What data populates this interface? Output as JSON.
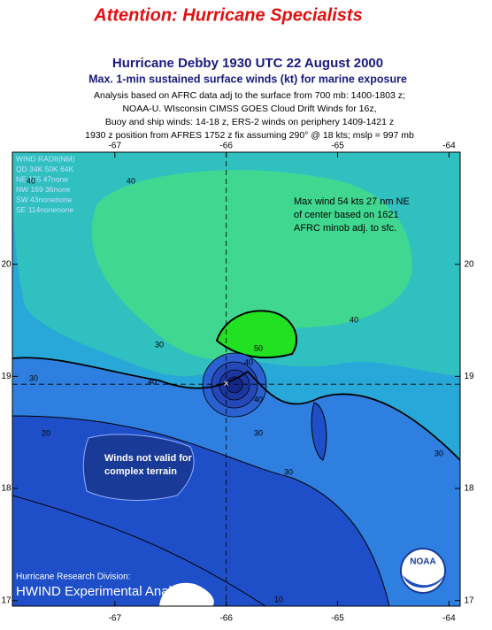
{
  "header": {
    "title": "Attention:  Hurricane Specialists"
  },
  "map": {
    "type": "contour",
    "title": "Hurricane Debby 1930 UTC 22 August 2000",
    "subtitle": "Max. 1-min sustained surface winds (kt) for marine exposure",
    "notes": [
      "Analysis based on AFRC data adj to the surface from 700 mb:  1400-1803 z;",
      "NOAA-U. WIsconsin CIMSS GOES Cloud Drift Winds for 16z,",
      "Buoy and ship winds: 14-18 z,  ERS-2 winds on periphery 1409-1421 z",
      "1930 z position from AFRES 1752 z fix assuming 290° @ 18 kts; mslp = 997 mb"
    ],
    "xlim": [
      -67.92,
      -63.9
    ],
    "ylim": [
      16.95,
      21.0
    ],
    "xticks": [
      -67,
      -66,
      -65,
      -64
    ],
    "yticks": [
      17,
      18,
      19,
      20
    ],
    "center": {
      "lon": -66.0,
      "lat": 18.93
    },
    "wind_radii": [
      "WIND RADII(NM)",
      "QD  34K  50K  64K",
      "NE  155   47none",
      "NW  169   36none",
      "SW   43nonenone",
      "SE  114nonenone"
    ],
    "annotations": [
      [
        "Max wind 54 kts 27 nm NE",
        "of center based on 1621",
        "AFRC minob adj. to sfc."
      ],
      [
        "Winds not valid for",
        "complex terrain"
      ]
    ],
    "contour_labels": [
      40,
      40,
      40,
      30,
      40,
      50,
      40,
      30,
      20,
      30,
      30,
      40,
      30,
      10
    ],
    "footer": [
      "Hurricane Research Division:",
      "HWIND Experimental Analysis"
    ],
    "logo": "NOAA"
  }
}
